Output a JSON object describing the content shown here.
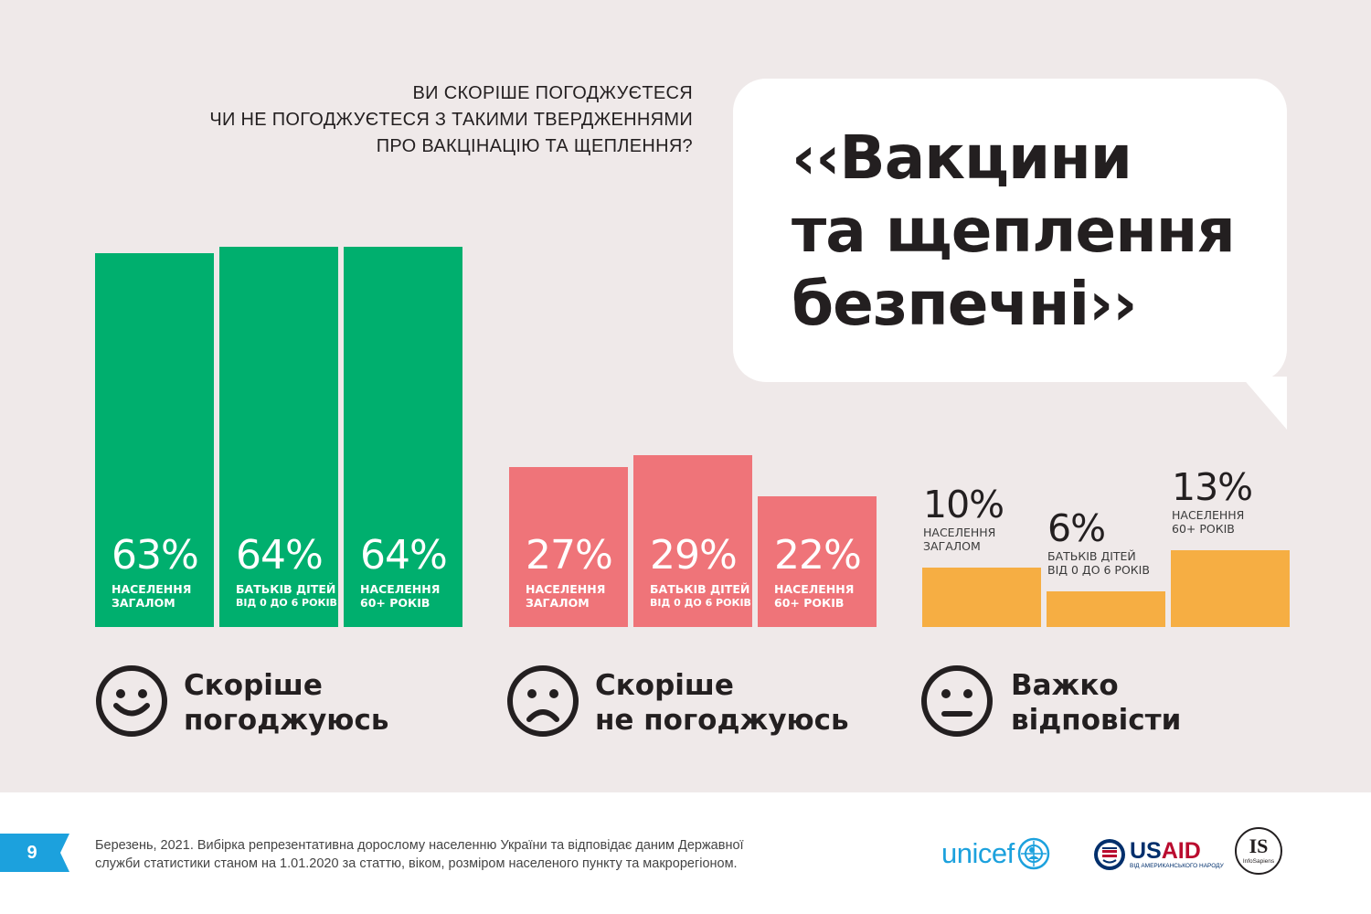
{
  "question": {
    "lines": [
      "ВИ СКОРІШЕ ПОГОДЖУЄТЕСЯ",
      "ЧИ НЕ ПОГОДЖУЄТЕСЯ З ТАКИМИ ТВЕРДЖЕННЯМИ",
      "ПРО ВАКЦІНАЦІЮ ТА ЩЕПЛЕННЯ?"
    ]
  },
  "quote": {
    "lines": [
      "‹‹Вакцини",
      "та щеплення",
      "безпечні››"
    ]
  },
  "chart_data": {
    "type": "bar",
    "title": "«Вакцини та щеплення безпечні»",
    "value_unit": "%",
    "groups": [
      {
        "category": "Скоріше погоджуюсь",
        "category_lines": [
          "Скоріше",
          "погоджуюсь"
        ],
        "face": "smile-face-icon",
        "color": "#00af6e",
        "bars": [
          {
            "value": 63,
            "label": "63%",
            "sub1": "НАСЕЛЕННЯ",
            "sub2": "ЗАГАЛОМ"
          },
          {
            "value": 64,
            "label": "64%",
            "sub1": "БАТЬКІВ ДІТЕЙ",
            "sub2": "ВІД 0 ДО 6 РОКІВ"
          },
          {
            "value": 64,
            "label": "64%",
            "sub1": "НАСЕЛЕННЯ",
            "sub2": "60+ РОКІВ"
          }
        ]
      },
      {
        "category": "Скоріше не погоджуюсь",
        "category_lines": [
          "Скоріше",
          "не погоджуюсь"
        ],
        "face": "sad-face-icon",
        "color": "#ef7479",
        "bars": [
          {
            "value": 27,
            "label": "27%",
            "sub1": "НАСЕЛЕННЯ",
            "sub2": "ЗАГАЛОМ"
          },
          {
            "value": 29,
            "label": "29%",
            "sub1": "БАТЬКІВ ДІТЕЙ",
            "sub2": "ВІД 0 ДО 6 РОКІВ"
          },
          {
            "value": 22,
            "label": "22%",
            "sub1": "НАСЕЛЕННЯ",
            "sub2": "60+ РОКІВ"
          }
        ]
      },
      {
        "category": "Важко відповісти",
        "category_lines": [
          "Важко",
          "відповісти"
        ],
        "face": "neutral-face-icon",
        "color": "#f6ae43",
        "bars": [
          {
            "value": 10,
            "label": "10%",
            "sub1": "НАСЕЛЕННЯ",
            "sub2": "ЗАГАЛОМ"
          },
          {
            "value": 6,
            "label": "6%",
            "sub1": "БАТЬКІВ ДІТЕЙ",
            "sub2": "ВІД 0 ДО 6 РОКІВ"
          },
          {
            "value": 13,
            "label": "13%",
            "sub1": "НАСЕЛЕННЯ",
            "sub2": "60+ РОКІВ"
          }
        ]
      }
    ]
  },
  "footer": {
    "page_number": "9",
    "note_lines": [
      "Березень, 2021. Вибірка репрезентативна дорослому населенню України та відповідає даним Державної",
      "служби статистики станом на 1.01.2020 за статтю, віком, розміром населеного пункту та макрорегіоном."
    ],
    "unicef": "unicef",
    "usaid_main_1": "US",
    "usaid_main_2": "AID",
    "usaid_sub": "ВІД АМЕРИКАНСЬКОГО НАРОДУ",
    "is_logo": "IS",
    "is_sub": "InfoSapiens",
    "accent_color": "#1ca1dd"
  }
}
